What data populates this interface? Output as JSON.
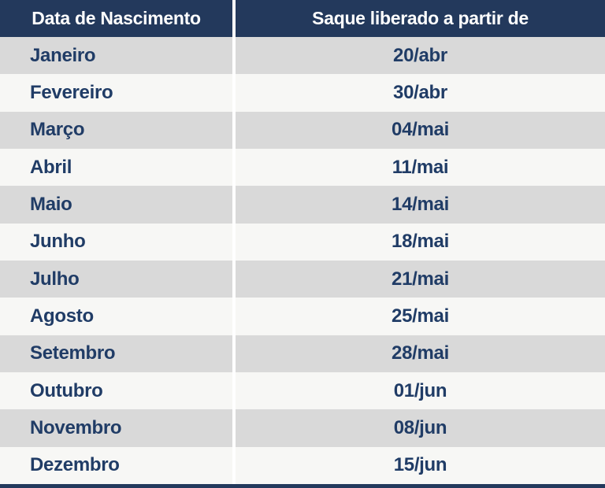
{
  "chart_data": {
    "type": "table",
    "title": "",
    "columns": [
      "Data de Nascimento",
      "Saque liberado a partir de"
    ],
    "rows": [
      {
        "month": "Janeiro",
        "date": "20/abr"
      },
      {
        "month": "Fevereiro",
        "date": "30/abr"
      },
      {
        "month": "Março",
        "date": "04/mai"
      },
      {
        "month": "Abril",
        "date": "11/mai"
      },
      {
        "month": "Maio",
        "date": "14/mai"
      },
      {
        "month": "Junho",
        "date": "18/mai"
      },
      {
        "month": "Julho",
        "date": "21/mai"
      },
      {
        "month": "Agosto",
        "date": "25/mai"
      },
      {
        "month": "Setembro",
        "date": "28/mai"
      },
      {
        "month": "Outubro",
        "date": "01/jun"
      },
      {
        "month": "Novembro",
        "date": "08/jun"
      },
      {
        "month": "Dezembro",
        "date": "15/jun"
      }
    ],
    "layout": {
      "row_striping": "alternating gray/light starting gray",
      "column_divider": "white vertical line",
      "bottom_strip": "navy bar cropped at image bottom"
    }
  },
  "colors": {
    "header_bg": "#23395c",
    "header_text": "#ffffff",
    "cell_text": "#203c66",
    "gray_row_bg": "#d9d9d9",
    "light_row_bg": "#f7f7f5",
    "divider": "#ffffff"
  }
}
